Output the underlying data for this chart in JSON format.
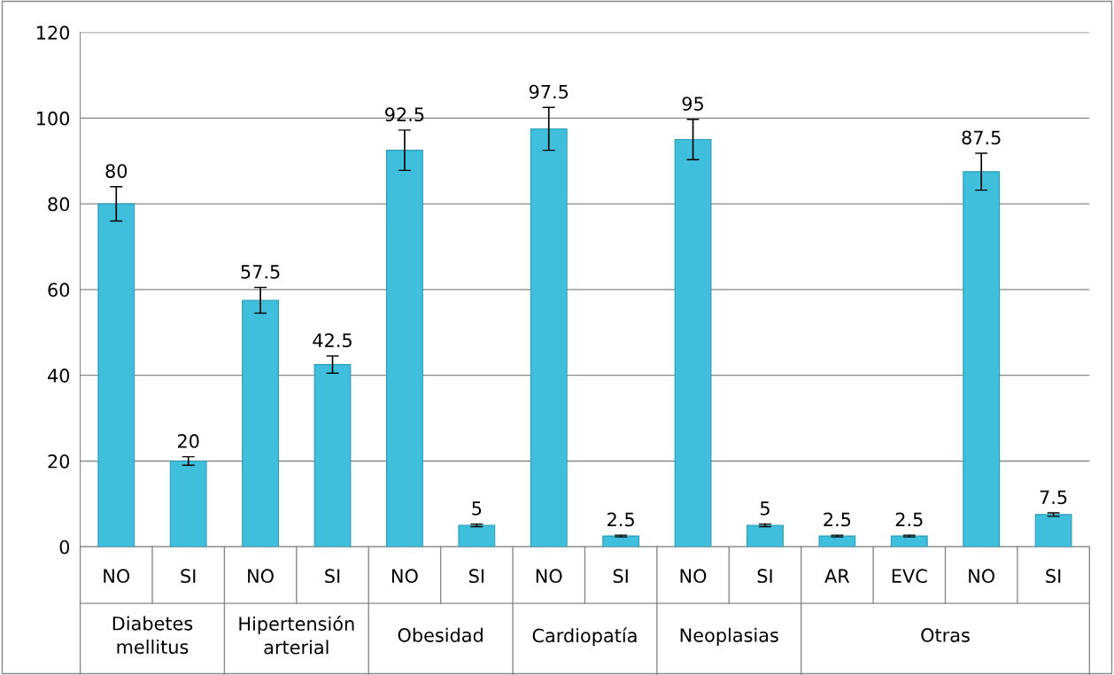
{
  "chart_data": {
    "type": "bar",
    "categories": [
      "NO",
      "SI",
      "NO",
      "SI",
      "NO",
      "SI",
      "NO",
      "SI",
      "NO",
      "SI",
      "AR",
      "EVC",
      "NO",
      "SI"
    ],
    "values": [
      80,
      20,
      57.5,
      42.5,
      92.5,
      5,
      97.5,
      2.5,
      95,
      5,
      2.5,
      2.5,
      87.5,
      7.5
    ],
    "errors": [
      4,
      1,
      3,
      2,
      4.7,
      0.3,
      5,
      0.2,
      4.7,
      0.3,
      0.2,
      0.2,
      4.3,
      0.4
    ],
    "color": "#3fbfdc",
    "data_labels": true,
    "annotations": [
      "Diabetes mellitus",
      "Hipertensión arterial",
      "Obesidad",
      "Cardiopatía",
      "Neoplasias",
      "Otras"
    ],
    "ylim": [
      0,
      120
    ],
    "yticks": [
      0,
      20,
      40,
      60,
      80,
      100,
      120
    ],
    "grid": "y"
  }
}
